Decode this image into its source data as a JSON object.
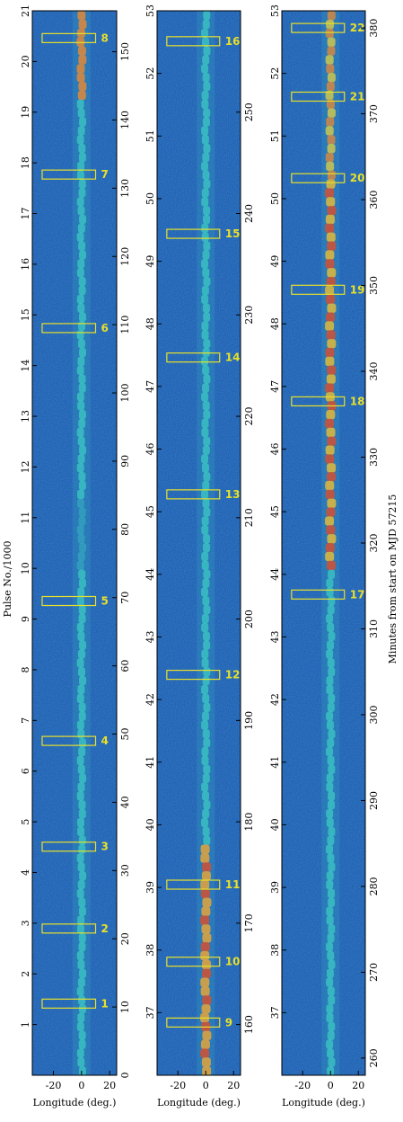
{
  "chart_data": [
    {
      "type": "heatmap",
      "panel": "left",
      "xlabel": "Longitude (deg.)",
      "xlim": [
        -35,
        25
      ],
      "xticks": [
        "-20",
        "0",
        "20"
      ],
      "left_axis_label": "Pulse No./1000",
      "left_range": [
        0,
        21
      ],
      "left_ticks": [
        "1",
        "2",
        "3",
        "4",
        "5",
        "6",
        "7",
        "8",
        "9",
        "10",
        "11",
        "12",
        "13",
        "14",
        "15",
        "16",
        "17",
        "18",
        "19",
        "20",
        "21"
      ],
      "right_range": [
        0,
        156
      ],
      "right_ticks": [
        "0",
        "10",
        "20",
        "30",
        "40",
        "50",
        "60",
        "70",
        "80",
        "90",
        "100",
        "110",
        "120",
        "130",
        "140",
        "150"
      ],
      "boxes": [
        {
          "label": "1",
          "minute": 10.5
        },
        {
          "label": "2",
          "minute": 21.5
        },
        {
          "label": "3",
          "minute": 33.5
        },
        {
          "label": "4",
          "minute": 49
        },
        {
          "label": "5",
          "minute": 69.5
        },
        {
          "label": "6",
          "minute": 109.5
        },
        {
          "label": "7",
          "minute": 132
        },
        {
          "label": "8",
          "minute": 152
        }
      ]
    },
    {
      "type": "heatmap",
      "panel": "middle",
      "xlabel": "Longitude (deg.)",
      "xlim": [
        -35,
        25
      ],
      "xticks": [
        "-20",
        "0",
        "20"
      ],
      "left_range": [
        36,
        53
      ],
      "left_ticks": [
        "37",
        "38",
        "39",
        "40",
        "41",
        "42",
        "43",
        "44",
        "45",
        "46",
        "47",
        "48",
        "49",
        "50",
        "51",
        "52",
        "53"
      ],
      "right_range": [
        155,
        260
      ],
      "right_ticks": [
        "160",
        "170",
        "180",
        "190",
        "200",
        "210",
        "220",
        "230",
        "240",
        "250"
      ],
      "boxes": [
        {
          "label": "9",
          "minute": 160.2
        },
        {
          "label": "10",
          "minute": 166.2
        },
        {
          "label": "11",
          "minute": 173.8
        },
        {
          "label": "12",
          "minute": 194.5
        },
        {
          "label": "13",
          "minute": 212.3
        },
        {
          "label": "14",
          "minute": 225.8
        },
        {
          "label": "15",
          "minute": 238
        },
        {
          "label": "16",
          "minute": 257
        }
      ]
    },
    {
      "type": "heatmap",
      "panel": "right",
      "xlabel": "Longitude (deg.)",
      "xlim": [
        -35,
        25
      ],
      "xticks": [
        "-20",
        "0",
        "20"
      ],
      "left_range": [
        36,
        53
      ],
      "left_ticks": [
        "37",
        "38",
        "39",
        "40",
        "41",
        "42",
        "43",
        "44",
        "45",
        "46",
        "47",
        "48",
        "49",
        "50",
        "51",
        "52",
        "53"
      ],
      "right_axis_label": "Minutes from start on MJD 57215",
      "right_range": [
        258,
        382
      ],
      "right_ticks": [
        "260",
        "270",
        "280",
        "290",
        "300",
        "310",
        "320",
        "330",
        "340",
        "350",
        "360",
        "370",
        "380"
      ],
      "boxes": [
        {
          "label": "17",
          "minute": 314
        },
        {
          "label": "18",
          "minute": 336.5
        },
        {
          "label": "19",
          "minute": 349.5
        },
        {
          "label": "20",
          "minute": 362.5
        },
        {
          "label": "21",
          "minute": 372
        },
        {
          "label": "22",
          "minute": 380
        }
      ]
    }
  ],
  "colors": {
    "background_blue": "#1f5fb0",
    "emission": "#3fd6c4",
    "bright": "#e23c22",
    "box": "#e8e02a"
  }
}
